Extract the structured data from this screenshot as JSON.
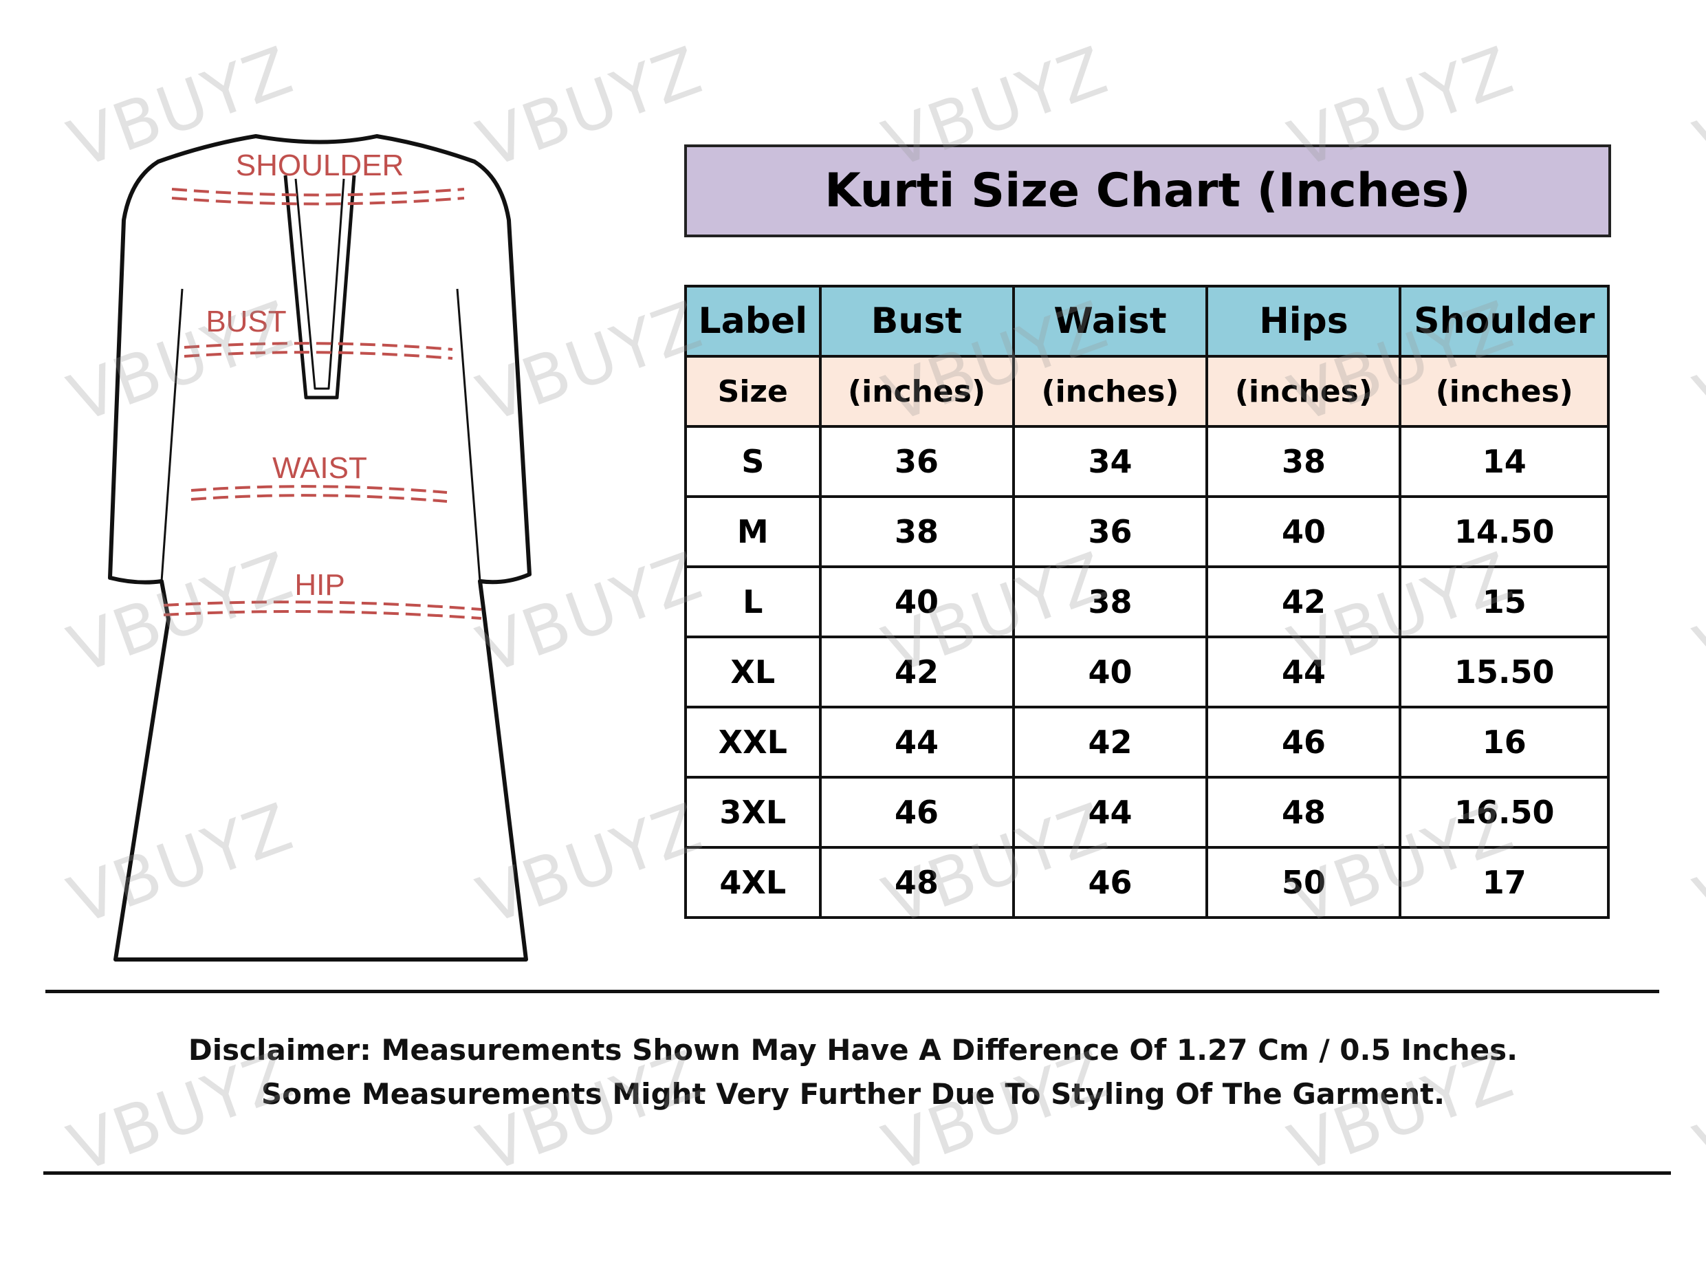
{
  "watermark": "VBUYZ",
  "illustration": {
    "labels": {
      "shoulder": "SHOULDER",
      "bust": "BUST",
      "waist": "WAIST",
      "hip": "HIP"
    },
    "label_color": "#c0504d"
  },
  "title": "Kurti Size Chart (Inches)",
  "colors": {
    "title_bg": "#cbbfdb",
    "header_bg": "#92cddc",
    "subheader_bg": "#fce8dc"
  },
  "table": {
    "headers": [
      "Label",
      "Bust",
      "Waist",
      "Hips",
      "Shoulder"
    ],
    "subheaders": [
      "Size",
      "(inches)",
      "(inches)",
      "(inches)",
      "(inches)"
    ],
    "rows": [
      [
        "S",
        "36",
        "34",
        "38",
        "14"
      ],
      [
        "M",
        "38",
        "36",
        "40",
        "14.50"
      ],
      [
        "L",
        "40",
        "38",
        "42",
        "15"
      ],
      [
        "XL",
        "42",
        "40",
        "44",
        "15.50"
      ],
      [
        "XXL",
        "44",
        "42",
        "46",
        "16"
      ],
      [
        "3XL",
        "46",
        "44",
        "48",
        "16.50"
      ],
      [
        "4XL",
        "48",
        "46",
        "50",
        "17"
      ]
    ]
  },
  "disclaimer": {
    "line1": "Disclaimer: Measurements Shown May Have A Difference Of 1.27 Cm / 0.5 Inches.",
    "line2": "Some Measurements Might Very Further Due To Styling Of The Garment."
  }
}
